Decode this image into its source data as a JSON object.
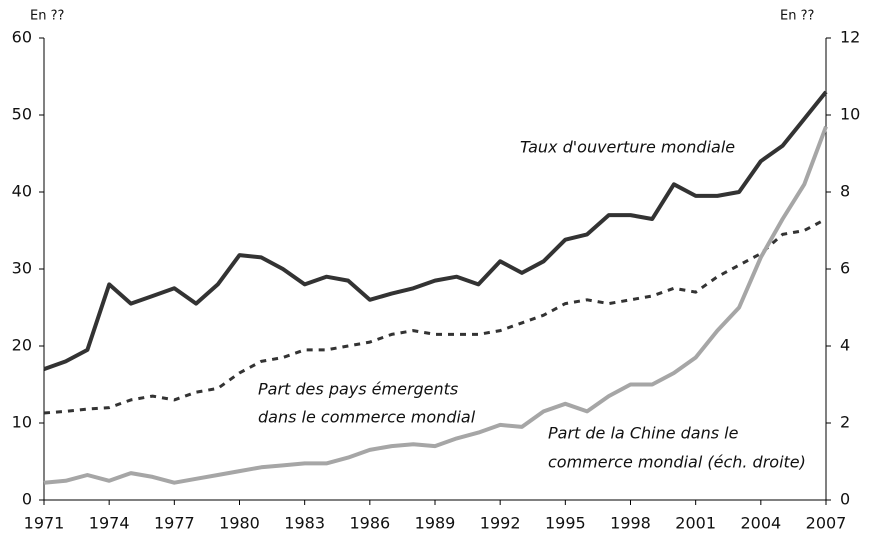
{
  "chart_data": {
    "type": "line",
    "y_unit_left": "En ??",
    "y_unit_right": "En ??",
    "x": [
      1971,
      1972,
      1973,
      1974,
      1975,
      1976,
      1977,
      1978,
      1979,
      1980,
      1981,
      1982,
      1983,
      1984,
      1985,
      1986,
      1987,
      1988,
      1989,
      1990,
      1991,
      1992,
      1993,
      1994,
      1995,
      1996,
      1997,
      1998,
      1999,
      2000,
      2001,
      2002,
      2003,
      2004,
      2005,
      2006,
      2007
    ],
    "xlim": [
      1971,
      2007
    ],
    "xticks": [
      1971,
      1974,
      1977,
      1980,
      1983,
      1986,
      1989,
      1992,
      1995,
      1998,
      2001,
      2004,
      2007
    ],
    "ylim": [
      0,
      60
    ],
    "yticks": [
      0,
      10,
      20,
      30,
      40,
      50,
      60
    ],
    "y2lim": [
      0,
      12
    ],
    "y2ticks": [
      0,
      2,
      4,
      6,
      8,
      10,
      12
    ],
    "series": [
      {
        "color": "#333333",
        "line_style": "solid",
        "axis": "y",
        "values": [
          17,
          18,
          19.5,
          28,
          25.5,
          26.5,
          27.5,
          25.5,
          28,
          31.8,
          31.5,
          30,
          28,
          29,
          28.5,
          26,
          26.8,
          27.5,
          28.5,
          29,
          28,
          31,
          29.5,
          31,
          33.8,
          34.5,
          37,
          37,
          36.5,
          41,
          39.5,
          39.5,
          40,
          44,
          46,
          49.5,
          53
        ]
      },
      {
        "color": "#333333",
        "line_style": "dashed",
        "axis": "y",
        "values": [
          11.3,
          11.5,
          11.8,
          12,
          13,
          13.5,
          13,
          14,
          14.5,
          16.5,
          18,
          18.5,
          19.5,
          19.5,
          20,
          20.5,
          21.5,
          22,
          21.5,
          21.5,
          21.5,
          22,
          23,
          24,
          25.5,
          26,
          25.5,
          26,
          26.5,
          27.5,
          27,
          29,
          30.5,
          32,
          34.5,
          35,
          36.5
        ]
      },
      {
        "color": "#a6a6a6",
        "line_style": "solid",
        "axis": "y2",
        "values": [
          0.45,
          0.5,
          0.65,
          0.5,
          0.7,
          0.6,
          0.45,
          0.55,
          0.65,
          0.75,
          0.85,
          0.9,
          0.95,
          0.95,
          1.1,
          1.3,
          1.4,
          1.45,
          1.4,
          1.6,
          1.75,
          1.95,
          1.9,
          2.3,
          2.5,
          2.3,
          2.7,
          3.0,
          3.0,
          3.3,
          3.7,
          4.4,
          5.0,
          6.3,
          7.3,
          8.2,
          9.7
        ]
      }
    ],
    "annotations": [
      "Taux d'ouverture mondiale",
      "Part des pays émergents",
      "dans le commerce mondial",
      "Part de la Chine dans le",
      "commerce mondial (éch. droite)"
    ]
  }
}
